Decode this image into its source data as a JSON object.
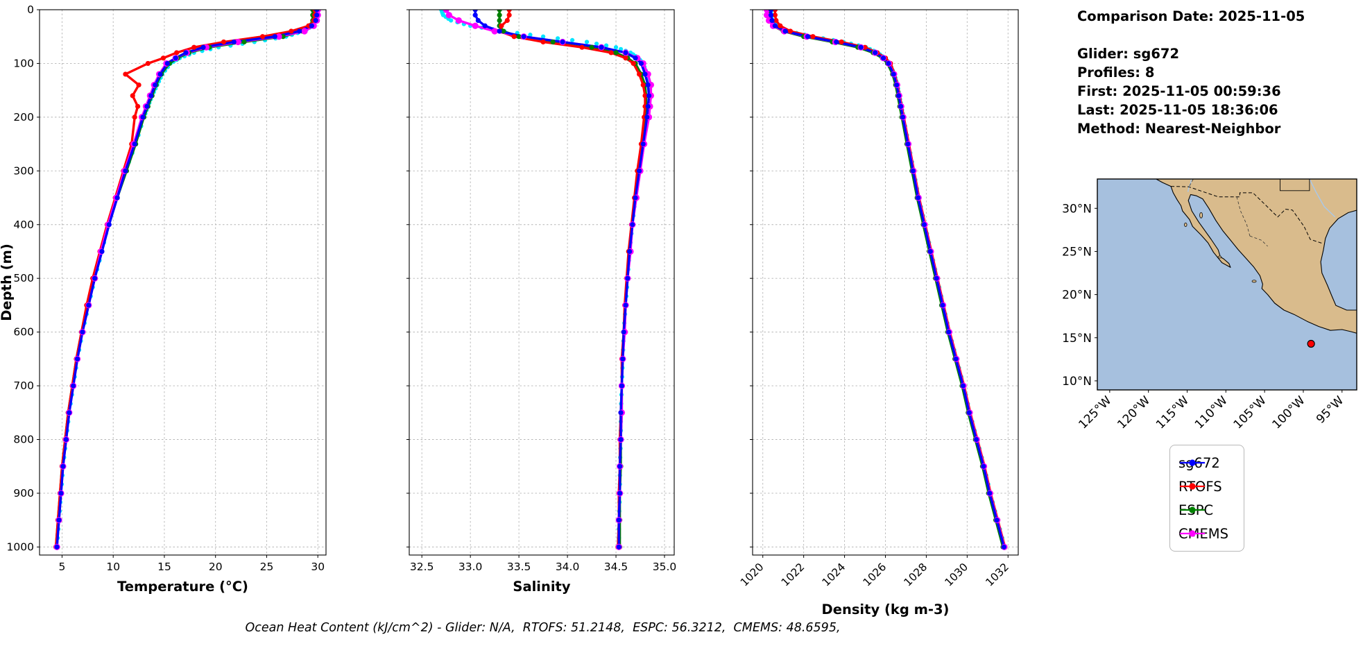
{
  "info": {
    "comparison_date": "Comparison Date: 2025-11-05",
    "glider": "Glider: sg672",
    "profiles": "Profiles: 8",
    "first": "First: 2025-11-05 00:59:36",
    "last": "Last: 2025-11-05 18:36:06",
    "method": "Method: Nearest-Neighbor"
  },
  "caption": "Ocean Heat Content (kJ/cm^2) - Glider: N/A,  RTOFS: 51.2148,  ESPC: 56.3212,  CMEMS: 48.6595,",
  "legend": {
    "items": [
      {
        "label": "sg672",
        "color": "#0000ff"
      },
      {
        "label": "RTOFS",
        "color": "#ff0000"
      },
      {
        "label": "ESPC",
        "color": "#008000"
      },
      {
        "label": "CMEMS",
        "color": "#ff00ff"
      }
    ]
  },
  "chart_data": [
    {
      "type": "line",
      "id": "temperature",
      "title": "",
      "xlabel": "Temperature (°C)",
      "ylabel": "Depth (m)",
      "xlim": [
        2.8,
        30.8
      ],
      "ylim": [
        0,
        1015
      ],
      "grid": true,
      "xticks": [
        5,
        10,
        15,
        20,
        25,
        30
      ],
      "xtick_labels": [
        "5",
        "10",
        "15",
        "20",
        "25",
        "30"
      ],
      "yticks": [
        0,
        100,
        200,
        300,
        400,
        500,
        600,
        700,
        800,
        900,
        1000
      ],
      "ytick_labels": [
        "0",
        "100",
        "200",
        "300",
        "400",
        "500",
        "600",
        "700",
        "800",
        "900",
        "1000"
      ],
      "depths": [
        0,
        10,
        20,
        30,
        40,
        50,
        60,
        70,
        80,
        90,
        100,
        120,
        140,
        160,
        180,
        200,
        250,
        300,
        350,
        400,
        450,
        500,
        550,
        600,
        650,
        700,
        750,
        800,
        850,
        900,
        950,
        1000
      ],
      "series": [
        {
          "name": "glider-raw",
          "color": "#00e5ff",
          "style": "dots",
          "values": [
            29.9,
            29.9,
            29.85,
            29.5,
            28.6,
            26.9,
            23.8,
            20.3,
            17.9,
            16.5,
            15.6,
            14.8,
            14.3,
            13.8,
            13.4,
            13.0,
            12.2,
            11.2,
            10.3,
            9.5,
            8.9,
            8.2,
            7.6,
            7.0,
            6.5,
            6.1,
            5.7,
            5.4,
            5.1,
            4.9,
            4.7,
            4.5
          ]
        },
        {
          "name": "ESPC",
          "color": "#008000",
          "values": [
            29.5,
            29.5,
            29.5,
            29.2,
            28.5,
            26.6,
            22.8,
            19.4,
            17.4,
            16.3,
            15.5,
            14.7,
            14.2,
            13.8,
            13.4,
            13.0,
            12.2,
            11.3,
            10.4,
            9.5,
            8.8,
            8.1,
            7.5,
            6.9,
            6.4,
            6.0,
            5.6,
            5.3,
            5.0,
            4.8,
            4.6,
            4.4
          ]
        },
        {
          "name": "RTOFS",
          "color": "#ff0000",
          "values": [
            29.7,
            29.7,
            29.6,
            29.1,
            27.4,
            24.6,
            20.8,
            17.9,
            16.2,
            14.9,
            13.4,
            11.2,
            12.5,
            11.9,
            12.4,
            12.1,
            11.8,
            11.0,
            10.2,
            9.4,
            8.7,
            8.0,
            7.4,
            6.9,
            6.4,
            6.0,
            5.6,
            5.3,
            5.0,
            4.8,
            4.6,
            4.4
          ]
        },
        {
          "name": "CMEMS",
          "color": "#ff00ff",
          "marker_r": 4.6,
          "values": [
            30.0,
            30.0,
            29.9,
            29.6,
            28.7,
            26.2,
            22.2,
            19.1,
            17.2,
            16.1,
            15.2,
            14.5,
            14.0,
            13.6,
            13.2,
            12.8,
            12.0,
            11.1,
            10.3,
            9.5,
            8.8,
            8.2,
            7.6,
            7.0,
            6.5,
            6.1,
            5.7,
            5.4,
            5.1,
            4.9,
            4.7,
            4.5
          ]
        },
        {
          "name": "sg672",
          "color": "#0000ff",
          "values": [
            29.9,
            29.9,
            29.8,
            29.4,
            28.2,
            25.8,
            21.8,
            18.8,
            17.1,
            16.1,
            15.3,
            14.6,
            14.1,
            13.7,
            13.3,
            12.9,
            12.1,
            11.2,
            10.4,
            9.6,
            8.9,
            8.2,
            7.6,
            7.0,
            6.5,
            6.1,
            5.7,
            5.4,
            5.1,
            4.9,
            4.7,
            4.5
          ]
        }
      ]
    },
    {
      "type": "line",
      "id": "salinity",
      "title": "",
      "xlabel": "Salinity",
      "ylabel": "",
      "xlim": [
        32.37,
        35.1
      ],
      "ylim": [
        0,
        1015
      ],
      "grid": true,
      "xticks": [
        32.5,
        33.0,
        33.5,
        34.0,
        34.5,
        35.0
      ],
      "xtick_labels": [
        "32.5",
        "33.0",
        "33.5",
        "34.0",
        "34.5",
        "35.0"
      ],
      "yticks": [
        0,
        100,
        200,
        300,
        400,
        500,
        600,
        700,
        800,
        900,
        1000
      ],
      "ytick_labels": [
        "0",
        "100",
        "200",
        "300",
        "400",
        "500",
        "600",
        "700",
        "800",
        "900",
        "1000"
      ],
      "depths": [
        0,
        10,
        20,
        30,
        40,
        50,
        60,
        70,
        80,
        90,
        100,
        120,
        140,
        160,
        180,
        200,
        250,
        300,
        350,
        400,
        450,
        500,
        550,
        600,
        650,
        700,
        750,
        800,
        850,
        900,
        950,
        1000
      ],
      "series": [
        {
          "name": "glider-raw",
          "color": "#00e5ff",
          "style": "dots",
          "values": [
            32.7,
            32.72,
            32.8,
            33.0,
            33.35,
            33.75,
            34.2,
            34.5,
            34.65,
            34.73,
            34.78,
            34.82,
            34.84,
            34.85,
            34.84,
            34.82,
            34.78,
            34.74,
            34.7,
            34.67,
            34.64,
            34.62,
            34.6,
            34.58,
            34.57,
            34.56,
            34.55,
            34.55,
            34.54,
            34.54,
            34.53,
            34.53
          ]
        },
        {
          "name": "ESPC",
          "color": "#008000",
          "values": [
            33.3,
            33.3,
            33.3,
            33.3,
            33.34,
            33.5,
            33.85,
            34.25,
            34.5,
            34.62,
            34.7,
            34.76,
            34.8,
            34.81,
            34.81,
            34.8,
            34.77,
            34.73,
            34.7,
            34.66,
            34.64,
            34.62,
            34.6,
            34.58,
            34.57,
            34.56,
            34.56,
            34.55,
            34.55,
            34.54,
            34.54,
            34.54
          ]
        },
        {
          "name": "RTOFS",
          "color": "#ff0000",
          "values": [
            33.4,
            33.4,
            33.38,
            33.32,
            33.3,
            33.45,
            33.75,
            34.15,
            34.45,
            34.6,
            34.68,
            34.74,
            34.78,
            34.8,
            34.8,
            34.79,
            34.76,
            34.72,
            34.69,
            34.66,
            34.63,
            34.61,
            34.59,
            34.58,
            34.56,
            34.56,
            34.55,
            34.54,
            34.54,
            34.53,
            34.53,
            34.52
          ]
        },
        {
          "name": "CMEMS",
          "color": "#ff00ff",
          "marker_r": 4.6,
          "values": [
            32.75,
            32.78,
            32.88,
            33.05,
            33.25,
            33.55,
            33.95,
            34.35,
            34.6,
            34.72,
            34.78,
            34.83,
            34.86,
            34.86,
            34.85,
            34.84,
            34.79,
            34.75,
            34.71,
            34.67,
            34.65,
            34.62,
            34.6,
            34.59,
            34.57,
            34.56,
            34.56,
            34.55,
            34.54,
            34.54,
            34.53,
            34.53
          ]
        },
        {
          "name": "sg672",
          "color": "#0000ff",
          "values": [
            33.05,
            33.05,
            33.08,
            33.15,
            33.3,
            33.55,
            33.95,
            34.35,
            34.6,
            34.7,
            34.76,
            34.8,
            34.83,
            34.84,
            34.83,
            34.82,
            34.78,
            34.74,
            34.7,
            34.67,
            34.64,
            34.62,
            34.6,
            34.58,
            34.57,
            34.56,
            34.55,
            34.55,
            34.54,
            34.54,
            34.53,
            34.53
          ]
        }
      ]
    },
    {
      "type": "line",
      "id": "density",
      "title": "",
      "xlabel": "Density (kg m-3)",
      "ylabel": "",
      "xlim": [
        1019.5,
        1032.5
      ],
      "ylim": [
        0,
        1015
      ],
      "grid": true,
      "xticks": [
        1020,
        1022,
        1024,
        1026,
        1028,
        1030,
        1032
      ],
      "xtick_labels": [
        "1020",
        "1022",
        "1024",
        "1026",
        "1028",
        "1030",
        "1032"
      ],
      "yticks": [
        0,
        100,
        200,
        300,
        400,
        500,
        600,
        700,
        800,
        900,
        1000
      ],
      "ytick_labels": [
        "0",
        "100",
        "200",
        "300",
        "400",
        "500",
        "600",
        "700",
        "800",
        "900",
        "1000"
      ],
      "depths": [
        0,
        10,
        20,
        30,
        40,
        50,
        60,
        70,
        80,
        90,
        100,
        120,
        140,
        160,
        180,
        200,
        250,
        300,
        350,
        400,
        450,
        500,
        550,
        600,
        650,
        700,
        750,
        800,
        850,
        900,
        950,
        1000
      ],
      "series": [
        {
          "name": "glider-raw",
          "color": "#00e5ff",
          "style": "dots",
          "values": [
            1020.4,
            1020.4,
            1020.45,
            1020.68,
            1021.25,
            1022.45,
            1023.95,
            1025.05,
            1025.62,
            1025.97,
            1026.2,
            1026.44,
            1026.58,
            1026.68,
            1026.78,
            1026.88,
            1027.13,
            1027.38,
            1027.63,
            1027.93,
            1028.23,
            1028.53,
            1028.83,
            1029.13,
            1029.48,
            1029.83,
            1030.13,
            1030.48,
            1030.83,
            1031.13,
            1031.48,
            1031.83
          ]
        },
        {
          "name": "ESPC",
          "color": "#008000",
          "values": [
            1020.3,
            1020.3,
            1020.35,
            1020.5,
            1021.0,
            1022.0,
            1023.4,
            1024.65,
            1025.4,
            1025.85,
            1026.1,
            1026.35,
            1026.5,
            1026.6,
            1026.7,
            1026.8,
            1027.05,
            1027.3,
            1027.55,
            1027.85,
            1028.15,
            1028.45,
            1028.75,
            1029.05,
            1029.4,
            1029.75,
            1030.05,
            1030.4,
            1030.75,
            1031.05,
            1031.4,
            1031.75
          ]
        },
        {
          "name": "RTOFS",
          "color": "#ff0000",
          "values": [
            1020.6,
            1020.6,
            1020.65,
            1020.85,
            1021.35,
            1022.45,
            1023.85,
            1025.0,
            1025.6,
            1026.0,
            1026.25,
            1026.45,
            1026.6,
            1026.7,
            1026.8,
            1026.9,
            1027.15,
            1027.4,
            1027.65,
            1027.95,
            1028.25,
            1028.55,
            1028.85,
            1029.15,
            1029.5,
            1029.85,
            1030.15,
            1030.5,
            1030.85,
            1031.15,
            1031.5,
            1031.85
          ]
        },
        {
          "name": "CMEMS",
          "color": "#ff00ff",
          "marker_r": 4.6,
          "values": [
            1020.2,
            1020.2,
            1020.3,
            1020.5,
            1021.05,
            1022.15,
            1023.55,
            1024.8,
            1025.5,
            1025.9,
            1026.17,
            1026.42,
            1026.57,
            1026.67,
            1026.77,
            1026.87,
            1027.12,
            1027.37,
            1027.62,
            1027.92,
            1028.22,
            1028.52,
            1028.82,
            1029.12,
            1029.47,
            1029.82,
            1030.12,
            1030.47,
            1030.82,
            1031.12,
            1031.47,
            1031.82
          ]
        },
        {
          "name": "sg672",
          "color": "#0000ff",
          "values": [
            1020.4,
            1020.4,
            1020.45,
            1020.6,
            1021.1,
            1022.2,
            1023.6,
            1024.8,
            1025.5,
            1025.9,
            1026.15,
            1026.4,
            1026.55,
            1026.65,
            1026.75,
            1026.85,
            1027.1,
            1027.35,
            1027.6,
            1027.9,
            1028.2,
            1028.5,
            1028.8,
            1029.1,
            1029.45,
            1029.8,
            1030.1,
            1030.45,
            1030.8,
            1031.1,
            1031.45,
            1031.8
          ]
        }
      ]
    }
  ],
  "map": {
    "extent": {
      "lon": [
        -126.6,
        -93.1
      ],
      "lat": [
        8.95,
        33.4
      ]
    },
    "lat_ticks": [
      30,
      25,
      20,
      15,
      10
    ],
    "lat_tick_labels": [
      "30°N",
      "25°N",
      "20°N",
      "15°N",
      "10°N"
    ],
    "lon_ticks": [
      -125,
      -120,
      -115,
      -110,
      -105,
      -100,
      -95
    ],
    "lon_tick_labels": [
      "125°W",
      "120°W",
      "115°W",
      "110°W",
      "105°W",
      "100°W",
      "95°W"
    ],
    "marker": {
      "lon": -99.0,
      "lat": 14.3,
      "color": "#ff0000"
    },
    "colors": {
      "ocean": "#a6c0de",
      "land": "#d9bb8c",
      "river": "#a9c8ea"
    }
  }
}
